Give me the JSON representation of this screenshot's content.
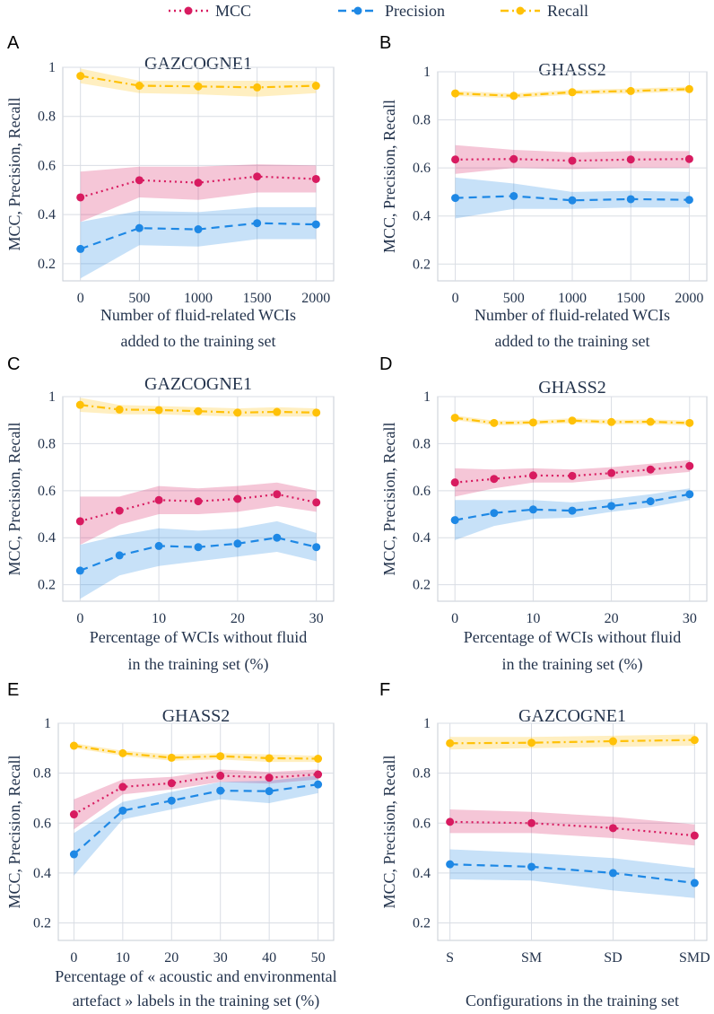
{
  "legend": [
    {
      "name": "MCC",
      "color": "#d81b60",
      "style": "dotted"
    },
    {
      "name": "Precision",
      "color": "#1e88e5",
      "style": "dashed"
    },
    {
      "name": "Recall",
      "color": "#ffc107",
      "style": "dashdot"
    }
  ],
  "chart_data": [
    {
      "letter": "A",
      "type": "line",
      "title": "GAZCOGNE1",
      "ylabel": "MCC, Precision, Recall",
      "xlabel": [
        "Number of fluid-related WCIs",
        "added to the training set"
      ],
      "x": [
        0,
        500,
        1000,
        1500,
        2000
      ],
      "xticks": [
        "0",
        "500",
        "1000",
        "1500",
        "2000"
      ],
      "xlim": [
        -150,
        2150
      ],
      "yticks": [
        "0.2",
        "0.4",
        "0.6",
        "0.8",
        "1"
      ],
      "ylim": [
        0.13,
        1.0
      ],
      "series": [
        {
          "name": "MCC",
          "values": [
            0.47,
            0.54,
            0.53,
            0.555,
            0.545
          ],
          "lower": [
            0.37,
            0.47,
            0.46,
            0.49,
            0.49
          ],
          "upper": [
            0.575,
            0.595,
            0.595,
            0.605,
            0.6
          ]
        },
        {
          "name": "Precision",
          "values": [
            0.26,
            0.345,
            0.34,
            0.365,
            0.36
          ],
          "lower": [
            0.14,
            0.275,
            0.27,
            0.3,
            0.3
          ],
          "upper": [
            0.37,
            0.415,
            0.41,
            0.43,
            0.43
          ]
        },
        {
          "name": "Recall",
          "values": [
            0.965,
            0.925,
            0.922,
            0.918,
            0.925
          ],
          "lower": [
            0.935,
            0.895,
            0.89,
            0.88,
            0.895
          ],
          "upper": [
            0.995,
            0.945,
            0.945,
            0.945,
            0.945
          ]
        }
      ]
    },
    {
      "letter": "B",
      "type": "line",
      "title": "GHASS2",
      "ylabel": "MCC, Precision, Recall",
      "xlabel": [
        "Number of fluid-related WCIs",
        "added to the training set"
      ],
      "x": [
        0,
        500,
        1000,
        1500,
        2000
      ],
      "xticks": [
        "0",
        "500",
        "1000",
        "1500",
        "2000"
      ],
      "xlim": [
        -150,
        2150
      ],
      "yticks": [
        "0.2",
        "0.4",
        "0.6",
        "0.8",
        "1"
      ],
      "ylim": [
        0.13,
        1.0
      ],
      "series": [
        {
          "name": "MCC",
          "values": [
            0.635,
            0.637,
            0.63,
            0.635,
            0.637
          ],
          "lower": [
            0.575,
            0.6,
            0.595,
            0.6,
            0.6
          ],
          "upper": [
            0.695,
            0.675,
            0.665,
            0.67,
            0.67
          ]
        },
        {
          "name": "Precision",
          "values": [
            0.475,
            0.483,
            0.465,
            0.47,
            0.467
          ],
          "lower": [
            0.39,
            0.43,
            0.43,
            0.435,
            0.435
          ],
          "upper": [
            0.56,
            0.535,
            0.5,
            0.505,
            0.5
          ]
        },
        {
          "name": "Recall",
          "values": [
            0.91,
            0.9,
            0.915,
            0.92,
            0.928
          ],
          "lower": [
            0.9,
            0.89,
            0.905,
            0.91,
            0.918
          ],
          "upper": [
            0.92,
            0.91,
            0.925,
            0.93,
            0.938
          ]
        }
      ]
    },
    {
      "letter": "C",
      "type": "line",
      "title": "GAZCOGNE1",
      "ylabel": "MCC, Precision, Recall",
      "xlabel": [
        "Percentage of WCIs without fluid",
        "in the training set (%)"
      ],
      "x": [
        0,
        5,
        10,
        15,
        20,
        25,
        30
      ],
      "xticks": [
        "0",
        "10",
        "20",
        "30"
      ],
      "xtickvals": [
        0,
        10,
        20,
        30
      ],
      "xlim": [
        -2.2,
        32.2
      ],
      "yticks": [
        "0.2",
        "0.4",
        "0.6",
        "0.8",
        "1"
      ],
      "ylim": [
        0.13,
        1.0
      ],
      "series": [
        {
          "name": "MCC",
          "values": [
            0.47,
            0.515,
            0.56,
            0.555,
            0.565,
            0.585,
            0.55
          ],
          "lower": [
            0.37,
            0.455,
            0.5,
            0.5,
            0.51,
            0.535,
            0.51
          ],
          "upper": [
            0.575,
            0.575,
            0.62,
            0.61,
            0.62,
            0.635,
            0.6
          ]
        },
        {
          "name": "Precision",
          "values": [
            0.26,
            0.325,
            0.365,
            0.36,
            0.375,
            0.4,
            0.36
          ],
          "lower": [
            0.14,
            0.24,
            0.28,
            0.3,
            0.32,
            0.34,
            0.3
          ],
          "upper": [
            0.37,
            0.41,
            0.44,
            0.43,
            0.44,
            0.47,
            0.42
          ]
        },
        {
          "name": "Recall",
          "values": [
            0.965,
            0.945,
            0.943,
            0.938,
            0.932,
            0.935,
            0.932
          ],
          "lower": [
            0.935,
            0.925,
            0.925,
            0.92,
            0.915,
            0.915,
            0.915
          ],
          "upper": [
            0.995,
            0.965,
            0.96,
            0.955,
            0.95,
            0.955,
            0.95
          ]
        }
      ]
    },
    {
      "letter": "D",
      "type": "line",
      "title": "GHASS2",
      "ylabel": "MCC, Precision, Recall",
      "xlabel": [
        "Percentage of WCIs without fluid",
        "in the training set (%)"
      ],
      "x": [
        0,
        5,
        10,
        15,
        20,
        25,
        30
      ],
      "xticks": [
        "0",
        "10",
        "20",
        "30"
      ],
      "xtickvals": [
        0,
        10,
        20,
        30
      ],
      "xlim": [
        -2.2,
        32.2
      ],
      "yticks": [
        "0.2",
        "0.4",
        "0.6",
        "0.8",
        "1"
      ],
      "ylim": [
        0.13,
        1.0
      ],
      "series": [
        {
          "name": "MCC",
          "values": [
            0.635,
            0.65,
            0.665,
            0.663,
            0.675,
            0.69,
            0.705
          ],
          "lower": [
            0.575,
            0.61,
            0.635,
            0.635,
            0.65,
            0.665,
            0.68
          ],
          "upper": [
            0.695,
            0.69,
            0.695,
            0.69,
            0.7,
            0.715,
            0.73
          ]
        },
        {
          "name": "Precision",
          "values": [
            0.475,
            0.505,
            0.52,
            0.515,
            0.535,
            0.555,
            0.585
          ],
          "lower": [
            0.39,
            0.45,
            0.48,
            0.485,
            0.51,
            0.53,
            0.56
          ],
          "upper": [
            0.56,
            0.56,
            0.56,
            0.55,
            0.565,
            0.585,
            0.61
          ]
        },
        {
          "name": "Recall",
          "values": [
            0.91,
            0.888,
            0.89,
            0.898,
            0.892,
            0.893,
            0.888
          ],
          "lower": [
            0.9,
            0.878,
            0.88,
            0.888,
            0.882,
            0.883,
            0.878
          ],
          "upper": [
            0.92,
            0.898,
            0.9,
            0.908,
            0.902,
            0.903,
            0.898
          ]
        }
      ]
    },
    {
      "letter": "E",
      "type": "line",
      "title": "GHASS2",
      "ylabel": "MCC, Precision, Recall",
      "xlabel": [
        "Percentage of « acoustic and environmental",
        "artefact » labels in the training set (%)"
      ],
      "x": [
        0,
        10,
        20,
        30,
        40,
        50
      ],
      "xticks": [
        "0",
        "10",
        "20",
        "30",
        "40",
        "50"
      ],
      "xlim": [
        -3.2,
        53.2
      ],
      "yticks": [
        "0.2",
        "0.4",
        "0.6",
        "0.8",
        "1"
      ],
      "ylim": [
        0.13,
        1.0
      ],
      "series": [
        {
          "name": "MCC",
          "values": [
            0.635,
            0.745,
            0.76,
            0.79,
            0.782,
            0.795
          ],
          "lower": [
            0.575,
            0.715,
            0.735,
            0.765,
            0.758,
            0.775
          ],
          "upper": [
            0.695,
            0.775,
            0.785,
            0.815,
            0.805,
            0.815
          ]
        },
        {
          "name": "Precision",
          "values": [
            0.475,
            0.65,
            0.69,
            0.73,
            0.728,
            0.755
          ],
          "lower": [
            0.39,
            0.615,
            0.655,
            0.695,
            0.68,
            0.72
          ],
          "upper": [
            0.56,
            0.685,
            0.725,
            0.765,
            0.77,
            0.79
          ]
        },
        {
          "name": "Recall",
          "values": [
            0.91,
            0.88,
            0.862,
            0.868,
            0.86,
            0.858
          ],
          "lower": [
            0.9,
            0.87,
            0.85,
            0.855,
            0.845,
            0.845
          ],
          "upper": [
            0.92,
            0.89,
            0.875,
            0.88,
            0.875,
            0.87
          ]
        }
      ]
    },
    {
      "letter": "F",
      "type": "line",
      "title": "GAZCOGNE1",
      "ylabel": "MCC, Precision, Recall",
      "xlabel": [
        "Configurations in the training set"
      ],
      "x": [
        0,
        1,
        2,
        3
      ],
      "xticks": [
        "S",
        "SM",
        "SD",
        "SMD"
      ],
      "xlim": [
        -0.15,
        3.15
      ],
      "yticks": [
        "0.2",
        "0.4",
        "0.6",
        "0.8",
        "1"
      ],
      "ylim": [
        0.13,
        1.0
      ],
      "series": [
        {
          "name": "MCC",
          "values": [
            0.605,
            0.6,
            0.58,
            0.55
          ],
          "lower": [
            0.56,
            0.56,
            0.54,
            0.51
          ],
          "upper": [
            0.655,
            0.645,
            0.625,
            0.595
          ]
        },
        {
          "name": "Precision",
          "values": [
            0.435,
            0.425,
            0.4,
            0.36
          ],
          "lower": [
            0.375,
            0.37,
            0.33,
            0.3
          ],
          "upper": [
            0.495,
            0.48,
            0.46,
            0.42
          ]
        },
        {
          "name": "Recall",
          "values": [
            0.92,
            0.922,
            0.928,
            0.933
          ],
          "lower": [
            0.895,
            0.9,
            0.905,
            0.91
          ],
          "upper": [
            0.945,
            0.945,
            0.95,
            0.955
          ]
        }
      ]
    }
  ]
}
